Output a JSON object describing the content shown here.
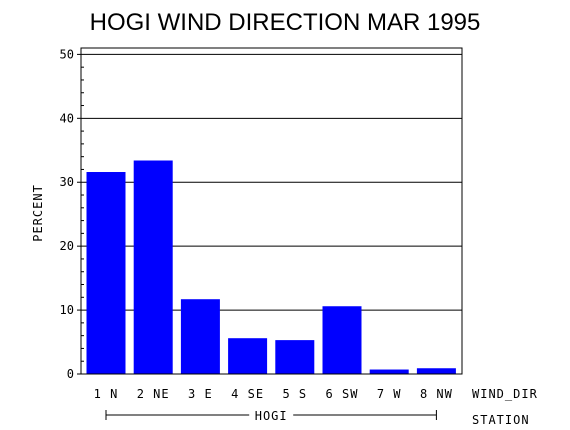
{
  "chart_data": {
    "type": "bar",
    "title": "HOGI WIND DIRECTION MAR 1995",
    "ylabel": "PERCENT",
    "xlabel": "WIND_DIR",
    "group_axis_label": "STATION",
    "group_label": "HOGI",
    "categories": [
      "1 N",
      "2 NE",
      "3 E",
      "4 SE",
      "5 S",
      "6 SW",
      "7 W",
      "8 NW"
    ],
    "values": [
      31.6,
      33.4,
      11.7,
      5.6,
      5.3,
      10.6,
      0.7,
      0.9
    ],
    "ylim": [
      0,
      51
    ],
    "yticks": [
      0,
      10,
      20,
      30,
      40,
      50
    ],
    "grid": true,
    "colors": {
      "bar": "#0000ff",
      "axis": "#000000",
      "background": "#ffffff"
    }
  }
}
